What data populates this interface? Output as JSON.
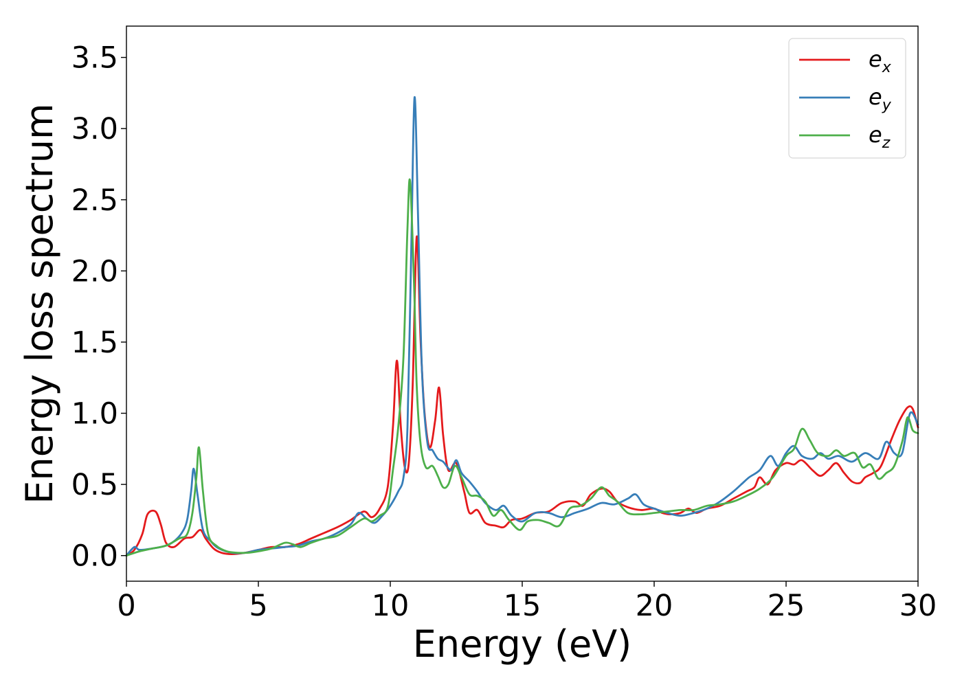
{
  "chart_data": {
    "type": "line",
    "title": "",
    "xlabel": "Energy (eV)",
    "ylabel": "Energy loss spectrum",
    "xlim": [
      0,
      30
    ],
    "ylim": [
      -0.18,
      3.72
    ],
    "xticks": [
      0,
      5,
      10,
      15,
      20,
      25,
      30
    ],
    "xtick_labels": [
      "0",
      "5",
      "10",
      "15",
      "20",
      "25",
      "30"
    ],
    "yticks": [
      0.0,
      0.5,
      1.0,
      1.5,
      2.0,
      2.5,
      3.0,
      3.5
    ],
    "ytick_labels": [
      "0.0",
      "0.5",
      "1.0",
      "1.5",
      "2.0",
      "2.5",
      "3.0",
      "3.5"
    ],
    "grid": false,
    "legend_position": "top-right",
    "series": [
      {
        "name": "e_x",
        "label_main": "e",
        "label_sub": "x",
        "color": "#e41a1c",
        "points": [
          [
            0,
            0
          ],
          [
            0.3,
            0.04
          ],
          [
            0.6,
            0.15
          ],
          [
            0.8,
            0.29
          ],
          [
            1.1,
            0.31
          ],
          [
            1.3,
            0.22
          ],
          [
            1.5,
            0.09
          ],
          [
            1.8,
            0.06
          ],
          [
            2.2,
            0.12
          ],
          [
            2.5,
            0.13
          ],
          [
            2.8,
            0.18
          ],
          [
            3.0,
            0.12
          ],
          [
            3.3,
            0.05
          ],
          [
            3.6,
            0.02
          ],
          [
            4.0,
            0.01
          ],
          [
            4.5,
            0.02
          ],
          [
            5.0,
            0.04
          ],
          [
            5.5,
            0.06
          ],
          [
            6.0,
            0.06
          ],
          [
            6.5,
            0.08
          ],
          [
            7.0,
            0.12
          ],
          [
            7.5,
            0.16
          ],
          [
            8.0,
            0.2
          ],
          [
            8.5,
            0.25
          ],
          [
            9.0,
            0.31
          ],
          [
            9.3,
            0.27
          ],
          [
            9.6,
            0.33
          ],
          [
            9.9,
            0.48
          ],
          [
            10.1,
            0.9
          ],
          [
            10.25,
            1.37
          ],
          [
            10.4,
            0.9
          ],
          [
            10.55,
            0.62
          ],
          [
            10.7,
            0.65
          ],
          [
            10.85,
            1.2
          ],
          [
            11.0,
            2.24
          ],
          [
            11.15,
            1.5
          ],
          [
            11.3,
            1.0
          ],
          [
            11.5,
            0.76
          ],
          [
            11.7,
            0.95
          ],
          [
            11.85,
            1.18
          ],
          [
            12.0,
            0.85
          ],
          [
            12.2,
            0.6
          ],
          [
            12.5,
            0.65
          ],
          [
            12.8,
            0.45
          ],
          [
            13.0,
            0.3
          ],
          [
            13.3,
            0.32
          ],
          [
            13.6,
            0.23
          ],
          [
            14.0,
            0.21
          ],
          [
            14.3,
            0.2
          ],
          [
            14.6,
            0.25
          ],
          [
            15.0,
            0.26
          ],
          [
            15.5,
            0.3
          ],
          [
            16.0,
            0.31
          ],
          [
            16.5,
            0.37
          ],
          [
            17.0,
            0.38
          ],
          [
            17.3,
            0.35
          ],
          [
            17.6,
            0.43
          ],
          [
            18.0,
            0.47
          ],
          [
            18.3,
            0.45
          ],
          [
            18.6,
            0.38
          ],
          [
            19.0,
            0.34
          ],
          [
            19.5,
            0.32
          ],
          [
            20.0,
            0.33
          ],
          [
            20.3,
            0.3
          ],
          [
            20.6,
            0.29
          ],
          [
            21.0,
            0.3
          ],
          [
            21.3,
            0.33
          ],
          [
            21.6,
            0.3
          ],
          [
            22.0,
            0.33
          ],
          [
            22.5,
            0.35
          ],
          [
            23.0,
            0.4
          ],
          [
            23.5,
            0.45
          ],
          [
            23.8,
            0.48
          ],
          [
            24.0,
            0.55
          ],
          [
            24.3,
            0.5
          ],
          [
            24.6,
            0.6
          ],
          [
            25.0,
            0.65
          ],
          [
            25.3,
            0.64
          ],
          [
            25.6,
            0.67
          ],
          [
            26.0,
            0.6
          ],
          [
            26.3,
            0.56
          ],
          [
            26.6,
            0.6
          ],
          [
            26.9,
            0.65
          ],
          [
            27.2,
            0.58
          ],
          [
            27.5,
            0.52
          ],
          [
            27.8,
            0.51
          ],
          [
            28.0,
            0.55
          ],
          [
            28.3,
            0.58
          ],
          [
            28.6,
            0.63
          ],
          [
            29.0,
            0.82
          ],
          [
            29.3,
            0.95
          ],
          [
            29.6,
            1.04
          ],
          [
            29.8,
            1.03
          ],
          [
            30.0,
            0.9
          ]
        ]
      },
      {
        "name": "e_y",
        "label_main": "e",
        "label_sub": "y",
        "color": "#377eb8",
        "points": [
          [
            0,
            0
          ],
          [
            0.3,
            0.06
          ],
          [
            0.5,
            0.04
          ],
          [
            1.0,
            0.05
          ],
          [
            1.5,
            0.07
          ],
          [
            1.8,
            0.1
          ],
          [
            2.1,
            0.16
          ],
          [
            2.3,
            0.25
          ],
          [
            2.45,
            0.45
          ],
          [
            2.55,
            0.61
          ],
          [
            2.7,
            0.42
          ],
          [
            2.9,
            0.18
          ],
          [
            3.2,
            0.1
          ],
          [
            3.5,
            0.05
          ],
          [
            4.0,
            0.02
          ],
          [
            4.5,
            0.02
          ],
          [
            5.0,
            0.04
          ],
          [
            5.5,
            0.05
          ],
          [
            6.0,
            0.06
          ],
          [
            6.5,
            0.07
          ],
          [
            7.0,
            0.1
          ],
          [
            7.5,
            0.12
          ],
          [
            8.0,
            0.16
          ],
          [
            8.5,
            0.22
          ],
          [
            8.8,
            0.3
          ],
          [
            9.1,
            0.26
          ],
          [
            9.4,
            0.23
          ],
          [
            9.7,
            0.28
          ],
          [
            10.0,
            0.35
          ],
          [
            10.3,
            0.45
          ],
          [
            10.5,
            0.55
          ],
          [
            10.65,
            0.9
          ],
          [
            10.8,
            2.2
          ],
          [
            10.92,
            3.22
          ],
          [
            11.05,
            2.4
          ],
          [
            11.2,
            1.3
          ],
          [
            11.4,
            0.8
          ],
          [
            11.6,
            0.74
          ],
          [
            11.8,
            0.68
          ],
          [
            12.0,
            0.66
          ],
          [
            12.3,
            0.6
          ],
          [
            12.5,
            0.67
          ],
          [
            12.7,
            0.58
          ],
          [
            13.0,
            0.52
          ],
          [
            13.3,
            0.45
          ],
          [
            13.6,
            0.37
          ],
          [
            14.0,
            0.32
          ],
          [
            14.3,
            0.35
          ],
          [
            14.6,
            0.28
          ],
          [
            15.0,
            0.24
          ],
          [
            15.5,
            0.3
          ],
          [
            16.0,
            0.3
          ],
          [
            16.5,
            0.27
          ],
          [
            17.0,
            0.3
          ],
          [
            17.5,
            0.33
          ],
          [
            18.0,
            0.37
          ],
          [
            18.5,
            0.36
          ],
          [
            19.0,
            0.4
          ],
          [
            19.3,
            0.43
          ],
          [
            19.6,
            0.36
          ],
          [
            20.0,
            0.33
          ],
          [
            20.5,
            0.3
          ],
          [
            21.0,
            0.28
          ],
          [
            21.5,
            0.3
          ],
          [
            22.0,
            0.33
          ],
          [
            22.5,
            0.38
          ],
          [
            23.0,
            0.45
          ],
          [
            23.3,
            0.5
          ],
          [
            23.6,
            0.55
          ],
          [
            24.0,
            0.6
          ],
          [
            24.4,
            0.7
          ],
          [
            24.7,
            0.63
          ],
          [
            25.0,
            0.72
          ],
          [
            25.3,
            0.77
          ],
          [
            25.6,
            0.7
          ],
          [
            26.0,
            0.68
          ],
          [
            26.3,
            0.72
          ],
          [
            26.6,
            0.68
          ],
          [
            27.0,
            0.7
          ],
          [
            27.5,
            0.66
          ],
          [
            28.0,
            0.72
          ],
          [
            28.5,
            0.68
          ],
          [
            28.8,
            0.8
          ],
          [
            29.1,
            0.72
          ],
          [
            29.4,
            0.72
          ],
          [
            29.7,
            1.0
          ],
          [
            30.0,
            0.92
          ]
        ]
      },
      {
        "name": "e_z",
        "label_main": "e",
        "label_sub": "z",
        "color": "#4daf4a",
        "points": [
          [
            0,
            0
          ],
          [
            0.5,
            0.03
          ],
          [
            1.0,
            0.05
          ],
          [
            1.5,
            0.07
          ],
          [
            2.0,
            0.12
          ],
          [
            2.3,
            0.15
          ],
          [
            2.5,
            0.3
          ],
          [
            2.65,
            0.55
          ],
          [
            2.75,
            0.76
          ],
          [
            2.9,
            0.45
          ],
          [
            3.1,
            0.15
          ],
          [
            3.4,
            0.07
          ],
          [
            3.8,
            0.03
          ],
          [
            4.2,
            0.02
          ],
          [
            4.6,
            0.02
          ],
          [
            5.0,
            0.03
          ],
          [
            5.5,
            0.05
          ],
          [
            6.0,
            0.09
          ],
          [
            6.3,
            0.08
          ],
          [
            6.6,
            0.06
          ],
          [
            7.0,
            0.09
          ],
          [
            7.5,
            0.12
          ],
          [
            8.0,
            0.14
          ],
          [
            8.5,
            0.2
          ],
          [
            9.0,
            0.26
          ],
          [
            9.3,
            0.24
          ],
          [
            9.6,
            0.28
          ],
          [
            9.9,
            0.34
          ],
          [
            10.1,
            0.6
          ],
          [
            10.3,
            0.9
          ],
          [
            10.5,
            1.4
          ],
          [
            10.65,
            2.3
          ],
          [
            10.75,
            2.63
          ],
          [
            10.9,
            1.9
          ],
          [
            11.0,
            1.2
          ],
          [
            11.15,
            0.78
          ],
          [
            11.35,
            0.62
          ],
          [
            11.6,
            0.63
          ],
          [
            11.8,
            0.56
          ],
          [
            12.0,
            0.48
          ],
          [
            12.2,
            0.5
          ],
          [
            12.45,
            0.63
          ],
          [
            12.7,
            0.55
          ],
          [
            13.0,
            0.43
          ],
          [
            13.3,
            0.42
          ],
          [
            13.6,
            0.38
          ],
          [
            13.9,
            0.28
          ],
          [
            14.2,
            0.32
          ],
          [
            14.5,
            0.25
          ],
          [
            14.9,
            0.18
          ],
          [
            15.2,
            0.24
          ],
          [
            15.6,
            0.25
          ],
          [
            16.0,
            0.23
          ],
          [
            16.4,
            0.21
          ],
          [
            16.8,
            0.33
          ],
          [
            17.2,
            0.35
          ],
          [
            17.6,
            0.4
          ],
          [
            18.0,
            0.48
          ],
          [
            18.3,
            0.42
          ],
          [
            18.6,
            0.38
          ],
          [
            19.0,
            0.3
          ],
          [
            19.5,
            0.29
          ],
          [
            20.0,
            0.3
          ],
          [
            20.5,
            0.31
          ],
          [
            21.0,
            0.32
          ],
          [
            21.5,
            0.32
          ],
          [
            22.0,
            0.35
          ],
          [
            22.5,
            0.36
          ],
          [
            23.0,
            0.38
          ],
          [
            23.5,
            0.42
          ],
          [
            24.0,
            0.47
          ],
          [
            24.5,
            0.55
          ],
          [
            25.0,
            0.7
          ],
          [
            25.3,
            0.75
          ],
          [
            25.6,
            0.89
          ],
          [
            25.9,
            0.81
          ],
          [
            26.2,
            0.72
          ],
          [
            26.6,
            0.7
          ],
          [
            26.9,
            0.74
          ],
          [
            27.2,
            0.7
          ],
          [
            27.6,
            0.72
          ],
          [
            27.9,
            0.62
          ],
          [
            28.2,
            0.64
          ],
          [
            28.5,
            0.54
          ],
          [
            28.8,
            0.58
          ],
          [
            29.1,
            0.63
          ],
          [
            29.4,
            0.8
          ],
          [
            29.6,
            0.97
          ],
          [
            29.8,
            0.88
          ],
          [
            30.0,
            0.86
          ]
        ]
      }
    ]
  }
}
